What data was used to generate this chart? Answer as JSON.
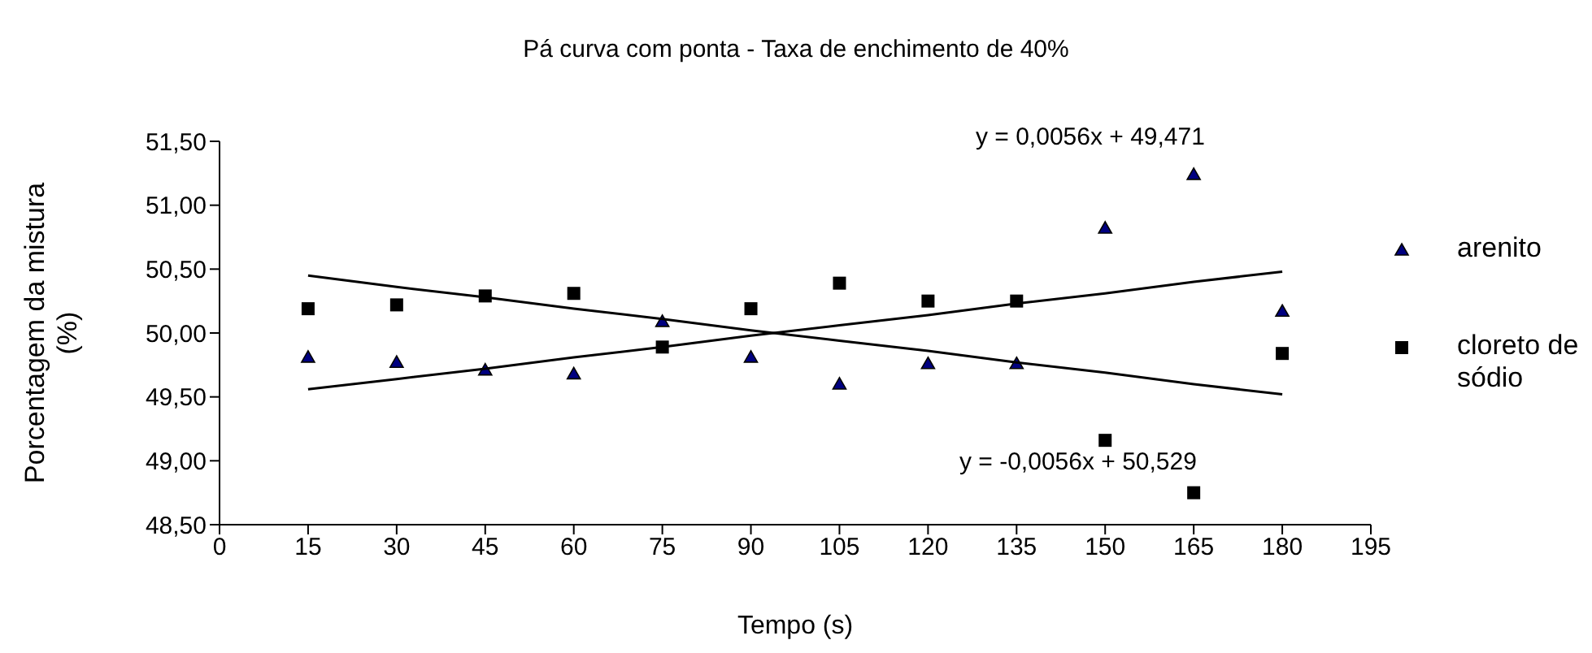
{
  "chart_data": {
    "type": "scatter",
    "title": "Pá curva com ponta - Taxa de enchimento de 40%",
    "xlabel": "Tempo (s)",
    "ylabel": "Porcentagem da mistura (%)",
    "xlim": [
      0,
      195
    ],
    "xticks": [
      0,
      15,
      30,
      45,
      60,
      75,
      90,
      105,
      120,
      135,
      150,
      165,
      180,
      195
    ],
    "ylim": [
      48.5,
      51.5
    ],
    "yticks": [
      {
        "value": 48.5,
        "label": "48,50"
      },
      {
        "value": 49,
        "label": "49,00"
      },
      {
        "value": 49.5,
        "label": "49,50"
      },
      {
        "value": 50,
        "label": "50,00"
      },
      {
        "value": 50.5,
        "label": "50,50"
      },
      {
        "value": 51,
        "label": "51,00"
      },
      {
        "value": 51.5,
        "label": "51,50"
      }
    ],
    "x": [
      15,
      30,
      45,
      60,
      75,
      90,
      105,
      120,
      135,
      150,
      165,
      180
    ],
    "series": [
      {
        "name": "arenito",
        "color": "#000080",
        "marker": "triangle",
        "values": [
          49.81,
          49.77,
          49.71,
          49.68,
          50.09,
          49.81,
          49.6,
          49.76,
          49.76,
          50.82,
          51.24,
          50.17
        ]
      },
      {
        "name": "cloreto de sódio",
        "color": "#000000",
        "marker": "square",
        "values": [
          50.19,
          50.22,
          50.29,
          50.31,
          49.89,
          50.19,
          50.39,
          50.25,
          50.25,
          49.16,
          48.75,
          49.84
        ]
      },
      {
        "type": "line",
        "color": "#000000",
        "marker": "none",
        "line_style": "solid",
        "values": [
          49.56,
          49.64,
          49.72,
          49.81,
          49.89,
          49.98,
          50.06,
          50.14,
          50.23,
          50.31,
          50.4,
          50.48
        ]
      },
      {
        "type": "line",
        "color": "#000000",
        "marker": "none",
        "line_style": "solid",
        "values": [
          50.45,
          50.36,
          50.28,
          50.19,
          50.11,
          50.02,
          49.94,
          49.86,
          49.77,
          49.69,
          49.6,
          49.52
        ]
      }
    ],
    "annotations": [
      "y = 0,0056x + 49,471",
      "y = -0,0056x + 50,529"
    ],
    "legend": "right",
    "grid": false
  }
}
